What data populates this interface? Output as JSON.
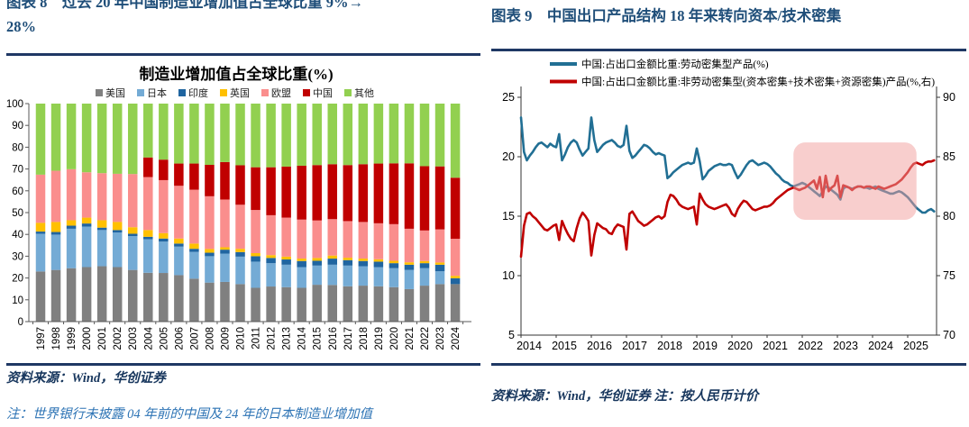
{
  "left_panel": {
    "figure_title_line1": "图表 8　过去 20 年中国制造业增加值占全球比重 9%→",
    "figure_title_line2": "28%",
    "source": "资料来源：Wind，华创证券",
    "note": "注：世界银行未披露 04 年前的中国及 24 年的日本制造业增加值"
  },
  "right_panel": {
    "figure_title": "图表 9　中国出口产品结构 18 年来转向资本/技术密集",
    "source_note": "资料来源：Wind，华创证券  注：按人民币计价"
  },
  "chart_data": [
    {
      "type": "bar",
      "stacked": true,
      "title": "制造业增加值占全球比重(%)",
      "ylim": [
        0,
        100
      ],
      "yticks": [
        0,
        10,
        20,
        30,
        40,
        50,
        60,
        70,
        80,
        90,
        100
      ],
      "grid": false,
      "legend_position": "top",
      "categories": [
        "1997",
        "1998",
        "1999",
        "2000",
        "2001",
        "2002",
        "2003",
        "2004",
        "2005",
        "2006",
        "2007",
        "2008",
        "2009",
        "2010",
        "2011",
        "2012",
        "2013",
        "2014",
        "2015",
        "2016",
        "2017",
        "2018",
        "2019",
        "2020",
        "2021",
        "2022",
        "2023",
        "2024"
      ],
      "series": [
        {
          "name": "美国",
          "color": "#808080",
          "values": [
            23.0,
            23.7,
            24.5,
            25.0,
            25.4,
            25.0,
            23.7,
            22.4,
            22.3,
            21.3,
            19.7,
            17.9,
            18.2,
            17.2,
            15.5,
            16.1,
            15.8,
            15.5,
            16.9,
            16.8,
            16.2,
            16.5,
            16.2,
            15.8,
            14.9,
            16.5,
            17.2,
            17.2
          ]
        },
        {
          "name": "日本",
          "color": "#74ABD5",
          "values": [
            17.3,
            16.2,
            18.1,
            18.6,
            16.6,
            15.9,
            15.5,
            15.4,
            14.4,
            13.1,
            12.3,
            12.1,
            13.0,
            12.6,
            12.0,
            10.7,
            10.3,
            9.5,
            8.8,
            9.3,
            9.5,
            8.9,
            8.8,
            8.7,
            8.8,
            8.0,
            5.9,
            0
          ]
        },
        {
          "name": "印度",
          "color": "#2065A0",
          "values": [
            1.0,
            1.2,
            1.4,
            1.4,
            1.1,
            1.1,
            1.1,
            1.1,
            1.4,
            1.4,
            1.4,
            1.6,
            1.8,
            2.1,
            2.5,
            2.4,
            2.4,
            2.8,
            2.2,
            2.8,
            2.5,
            2.4,
            2.5,
            2.3,
            2.4,
            2.3,
            3.0,
            2.7
          ]
        },
        {
          "name": "英国",
          "color": "#FFC000",
          "values": [
            4.0,
            4.6,
            2.5,
            2.7,
            3.4,
            3.7,
            3.0,
            3.1,
            2.5,
            2.3,
            2.4,
            1.7,
            1.1,
            1.5,
            1.4,
            1.3,
            1.3,
            1.1,
            1.3,
            1.4,
            1.1,
            1.1,
            1.1,
            1.1,
            1.1,
            1.0,
            1.0,
            1.1
          ]
        },
        {
          "name": "欧盟",
          "color": "#FA8E8D",
          "values": [
            22.1,
            23.5,
            23.4,
            20.8,
            21.6,
            22.1,
            24.4,
            24.3,
            24.3,
            24.2,
            24.7,
            24.2,
            21.9,
            20.2,
            19.8,
            18.3,
            17.9,
            17.9,
            17.2,
            16.7,
            16.8,
            16.8,
            16.5,
            16.8,
            15.4,
            14.0,
            15.2,
            17.0
          ]
        },
        {
          "name": "中国",
          "color": "#C00000",
          "values": [
            0,
            0,
            0,
            0,
            0,
            0,
            0,
            9.0,
            9.4,
            10.2,
            12.0,
            14.4,
            17.2,
            18.1,
            19.6,
            22.0,
            23.4,
            24.7,
            25.4,
            25.2,
            25.7,
            26.5,
            27.4,
            27.9,
            30.0,
            29.5,
            28.9,
            28.0
          ]
        },
        {
          "name": "其他",
          "color": "#92D050",
          "values": [
            32.6,
            30.8,
            30.1,
            31.5,
            31.9,
            32.2,
            32.3,
            24.7,
            25.7,
            27.5,
            27.5,
            28.1,
            26.8,
            28.3,
            29.2,
            29.2,
            28.9,
            28.5,
            28.2,
            27.8,
            28.2,
            27.8,
            27.5,
            27.4,
            27.4,
            28.7,
            28.8,
            34.0
          ]
        }
      ]
    },
    {
      "type": "line",
      "x_monthly_start_year": 2014,
      "xticks": [
        "2014",
        "2015",
        "2016",
        "2017",
        "2018",
        "2019",
        "2020",
        "2021",
        "2022",
        "2023",
        "2024",
        "2025"
      ],
      "left_ylim": [
        5,
        25
      ],
      "left_yticks": [
        5,
        10,
        15,
        20,
        25
      ],
      "right_ylim": [
        70,
        90
      ],
      "right_yticks": [
        70,
        75,
        80,
        85,
        90
      ],
      "grid": false,
      "legend_position": "top",
      "highlight": {
        "x_from_year": 2021.75,
        "x_to_year": 2025.25,
        "right_axis_from": 79.7,
        "right_axis_to": 86.2,
        "color": "rgba(242,158,156,0.5)"
      },
      "series": [
        {
          "name": "中国:占出口金额比重:劳动密集型产品(%)",
          "axis": "left",
          "color": "#216F94",
          "values": [
            23.3,
            20.4,
            19.7,
            20.1,
            20.4,
            20.8,
            21.1,
            21.2,
            21.0,
            20.8,
            21.1,
            20.9,
            20.8,
            21.9,
            19.7,
            20.2,
            20.8,
            21.2,
            21.4,
            21.2,
            20.6,
            20.1,
            20.4,
            20.7,
            23.3,
            21.4,
            20.4,
            20.7,
            21.0,
            21.2,
            21.3,
            21.4,
            21.2,
            20.9,
            20.8,
            21.0,
            22.6,
            20.5,
            19.9,
            20.1,
            20.4,
            20.7,
            21.0,
            20.9,
            20.7,
            20.4,
            20.2,
            20.3,
            20.2,
            20.1,
            18.2,
            18.4,
            18.7,
            18.9,
            19.1,
            19.3,
            19.4,
            19.5,
            19.4,
            19.5,
            20.7,
            19.6,
            18.1,
            18.4,
            18.8,
            19.0,
            19.2,
            19.3,
            19.4,
            19.3,
            19.3,
            19.4,
            19.3,
            18.7,
            18.2,
            18.5,
            18.9,
            19.3,
            19.6,
            19.7,
            19.5,
            19.3,
            19.4,
            19.5,
            19.4,
            19.2,
            18.9,
            18.6,
            18.4,
            18.1,
            17.9,
            17.8,
            17.6,
            17.5,
            17.6,
            17.7,
            17.8,
            17.7,
            17.5,
            17.3,
            17.1,
            16.9,
            16.7,
            17.1,
            17.5,
            17.4,
            17.2,
            17.0,
            16.8,
            16.4,
            17.3,
            17.5,
            17.4,
            17.3,
            17.4,
            17.5,
            17.5,
            17.4,
            17.4,
            17.3,
            17.4,
            17.5,
            17.3,
            17.2,
            17.1,
            17.0,
            16.9,
            16.9,
            17.0,
            17.1,
            17.0,
            16.8,
            16.6,
            16.3,
            16.0,
            15.7,
            15.5,
            15.3,
            15.3,
            15.5,
            15.6,
            15.4
          ]
        },
        {
          "name": "中国:占出口金额比重:非劳动密集型(资本密集+技术密集+资源密集)产品(%,右)",
          "axis": "right",
          "color": "#C00000",
          "values": [
            76.6,
            79.2,
            80.2,
            80.3,
            80.0,
            79.8,
            79.5,
            79.2,
            78.9,
            78.8,
            79.0,
            79.2,
            79.3,
            78.0,
            79.6,
            79.0,
            78.5,
            78.1,
            77.9,
            79.0,
            79.8,
            80.3,
            80.0,
            79.6,
            76.7,
            78.4,
            79.4,
            79.2,
            79.0,
            78.9,
            78.6,
            78.5,
            79.0,
            79.3,
            79.2,
            79.1,
            77.2,
            80.2,
            80.4,
            80.0,
            79.6,
            79.4,
            79.2,
            79.3,
            79.5,
            79.7,
            79.9,
            80.0,
            79.8,
            80.0,
            81.2,
            81.8,
            81.7,
            81.4,
            81.0,
            80.8,
            80.7,
            80.6,
            80.7,
            80.8,
            79.3,
            81.9,
            81.4,
            81.0,
            80.8,
            80.7,
            80.6,
            80.7,
            80.8,
            80.9,
            81.0,
            80.7,
            80.2,
            80.0,
            80.6,
            81.0,
            81.3,
            81.2,
            80.9,
            80.6,
            80.5,
            80.6,
            80.7,
            80.8,
            80.8,
            80.9,
            81.1,
            81.4,
            81.6,
            81.8,
            82.0,
            82.2,
            82.3,
            82.4,
            82.3,
            82.2,
            82.3,
            82.4,
            82.6,
            82.8,
            83.0,
            82.3,
            83.3,
            81.6,
            83.4,
            82.1,
            82.4,
            82.6,
            83.4,
            81.6,
            82.6,
            82.5,
            82.4,
            82.2,
            82.4,
            82.5,
            82.5,
            82.4,
            82.5,
            82.5,
            82.4,
            82.3,
            82.5,
            82.4,
            82.3,
            82.4,
            82.5,
            82.6,
            82.7,
            82.9,
            83.1,
            83.4,
            83.7,
            84.1,
            84.4,
            84.5,
            84.4,
            84.3,
            84.5,
            84.6,
            84.6,
            84.7
          ]
        }
      ]
    }
  ]
}
